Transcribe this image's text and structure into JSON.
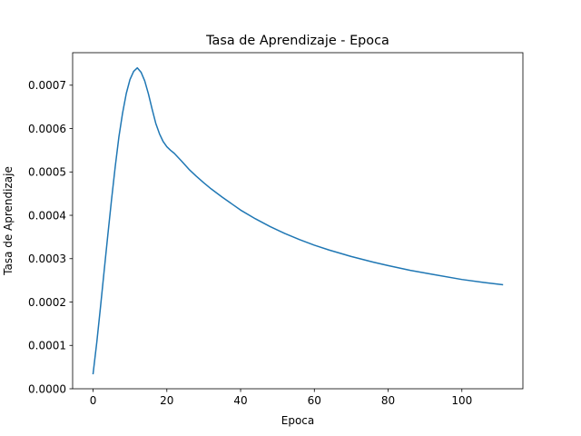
{
  "chart_data": {
    "type": "line",
    "title": "Tasa de Aprendizaje - Epoca",
    "xlabel": "Epoca",
    "ylabel": "Tasa de Aprendizaje",
    "xlim": [
      -5.55,
      116.55
    ],
    "ylim": [
      0,
      0.000775
    ],
    "xticks": [
      0,
      20,
      40,
      60,
      80,
      100
    ],
    "yticks": [
      0.0,
      0.0001,
      0.0002,
      0.0003,
      0.0004,
      0.0005,
      0.0006,
      0.0007
    ],
    "ytick_labels": [
      "0.0000",
      "0.0001",
      "0.0002",
      "0.0003",
      "0.0004",
      "0.0005",
      "0.0006",
      "0.0007"
    ],
    "grid": false,
    "legend": "none",
    "colors": {
      "line": "#1f77b4"
    },
    "series": [
      {
        "name": "",
        "x": [
          0,
          1,
          2,
          3,
          4,
          5,
          6,
          7,
          8,
          9,
          10,
          11,
          12,
          13,
          14,
          15,
          16,
          17,
          18,
          19,
          20,
          21,
          22,
          24,
          26,
          28,
          30,
          32,
          35,
          38,
          40,
          44,
          48,
          52,
          56,
          60,
          64,
          70,
          76,
          80,
          86,
          92,
          100,
          106,
          111
        ],
        "y": [
          3.5e-05,
          0.000107,
          0.000188,
          0.000272,
          0.000355,
          0.000436,
          0.000512,
          0.000581,
          0.000636,
          0.000681,
          0.000713,
          0.000732,
          0.00074,
          0.00073,
          0.00071,
          0.00068,
          0.000645,
          0.000612,
          0.000588,
          0.00057,
          0.000558,
          0.00055,
          0.000543,
          0.000525,
          0.000506,
          0.00049,
          0.000475,
          0.000461,
          0.000442,
          0.000424,
          0.000412,
          0.000392,
          0.000374,
          0.000358,
          0.000344,
          0.000331,
          0.00032,
          0.000305,
          0.000292,
          0.000284,
          0.000273,
          0.000264,
          0.000252,
          0.000245,
          0.00024
        ]
      }
    ]
  }
}
